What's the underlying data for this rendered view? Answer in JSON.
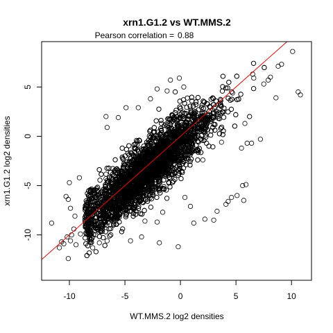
{
  "chart_data": {
    "type": "scatter",
    "title": "xrn1.G1.2 vs WT.MMS.2",
    "subtitle_label": "Pearson correlation =",
    "subtitle_value": "0.88",
    "xlabel": "WT.MMS.2 log2 densities",
    "ylabel": "xrn1.G1.2 log2 densities",
    "xlim": [
      -12.5,
      11.8
    ],
    "ylim": [
      -14.6,
      9.6
    ],
    "x_ticks": [
      -10,
      -5,
      0,
      5,
      10
    ],
    "y_ticks": [
      -10,
      -5,
      0,
      5
    ],
    "x_tick_labels": [
      "-10",
      "-5",
      "0",
      "5",
      "10"
    ],
    "y_tick_labels": [
      "-10",
      "-5",
      "0",
      "5"
    ],
    "grid": false,
    "marker": "open-circle",
    "point_color": "#000000",
    "fit_line": {
      "slope": 1.0,
      "intercept": 0.0,
      "color": "#ff0000"
    },
    "cloud": {
      "n": 7000,
      "x_mean": -3.0,
      "x_sd": 2.9,
      "slope": 0.95,
      "intercept": -0.6,
      "residual_sd": 1.45,
      "x_range": [
        -8.6,
        8.0
      ]
    },
    "points": [
      [
        -10.5,
        -10.9
      ],
      [
        -10.9,
        -11.3
      ],
      [
        -10.7,
        -10.7
      ],
      [
        -11.6,
        -8.8
      ],
      [
        -10.1,
        -12.4
      ],
      [
        -10.2,
        -10.2
      ],
      [
        -9.8,
        -10.0
      ],
      [
        -9.6,
        -9.4
      ],
      [
        -9.5,
        -8.1
      ],
      [
        -9.9,
        -7.3
      ],
      [
        -10.1,
        -6.4
      ],
      [
        -10.3,
        -6.1
      ],
      [
        -10.0,
        -4.7
      ],
      [
        -9.1,
        -4.2
      ],
      [
        -9.4,
        -11.0
      ],
      [
        -9.9,
        -10.6
      ],
      [
        -7.3,
        -10.8
      ],
      [
        -6.6,
        -10.6
      ],
      [
        -4.5,
        -10.6
      ],
      [
        -3.5,
        -10.2
      ],
      [
        -1.9,
        -10.8
      ],
      [
        -0.2,
        -11.2
      ],
      [
        -3.2,
        -8.6
      ],
      [
        -2.1,
        -8.7
      ],
      [
        -1.6,
        -7.7
      ],
      [
        0.9,
        -7.1
      ],
      [
        2.2,
        -8.4
      ],
      [
        3.0,
        -8.5
      ],
      [
        3.3,
        -7.6
      ],
      [
        4.1,
        -6.9
      ],
      [
        4.3,
        -6.6
      ],
      [
        4.6,
        -6.2
      ],
      [
        5.1,
        -6.0
      ],
      [
        5.7,
        -6.5
      ],
      [
        5.9,
        -4.9
      ],
      [
        5.6,
        -5.0
      ],
      [
        1.2,
        -8.8
      ],
      [
        0.4,
        -6.2
      ],
      [
        -6.7,
        -4.3
      ],
      [
        -6.6,
        0.9
      ],
      [
        -6.7,
        2.0
      ],
      [
        -5.6,
        1.9
      ],
      [
        -2.7,
        3.8
      ],
      [
        -2.1,
        4.8
      ],
      [
        -1.2,
        4.6
      ],
      [
        -0.9,
        5.7
      ],
      [
        -0.1,
        5.9
      ],
      [
        0.3,
        5.0
      ],
      [
        -4.9,
        2.9
      ],
      [
        -3.8,
        2.9
      ],
      [
        6.0,
        -0.7
      ],
      [
        6.4,
        -0.7
      ],
      [
        7.2,
        -0.3
      ],
      [
        5.5,
        -1.2
      ],
      [
        5.8,
        1.3
      ],
      [
        6.6,
        5.9
      ],
      [
        6.5,
        6.3
      ],
      [
        7.5,
        5.3
      ],
      [
        7.9,
        5.7
      ],
      [
        8.1,
        6.0
      ],
      [
        8.8,
        7.1
      ],
      [
        9.1,
        7.3
      ],
      [
        10.1,
        8.6
      ],
      [
        10.6,
        4.5
      ],
      [
        10.8,
        4.2
      ],
      [
        8.6,
        3.9
      ],
      [
        3.7,
        -0.6
      ],
      [
        3.0,
        3.2
      ],
      [
        -7.9,
        -11.3
      ],
      [
        -9.0,
        -9.9
      ]
    ]
  }
}
